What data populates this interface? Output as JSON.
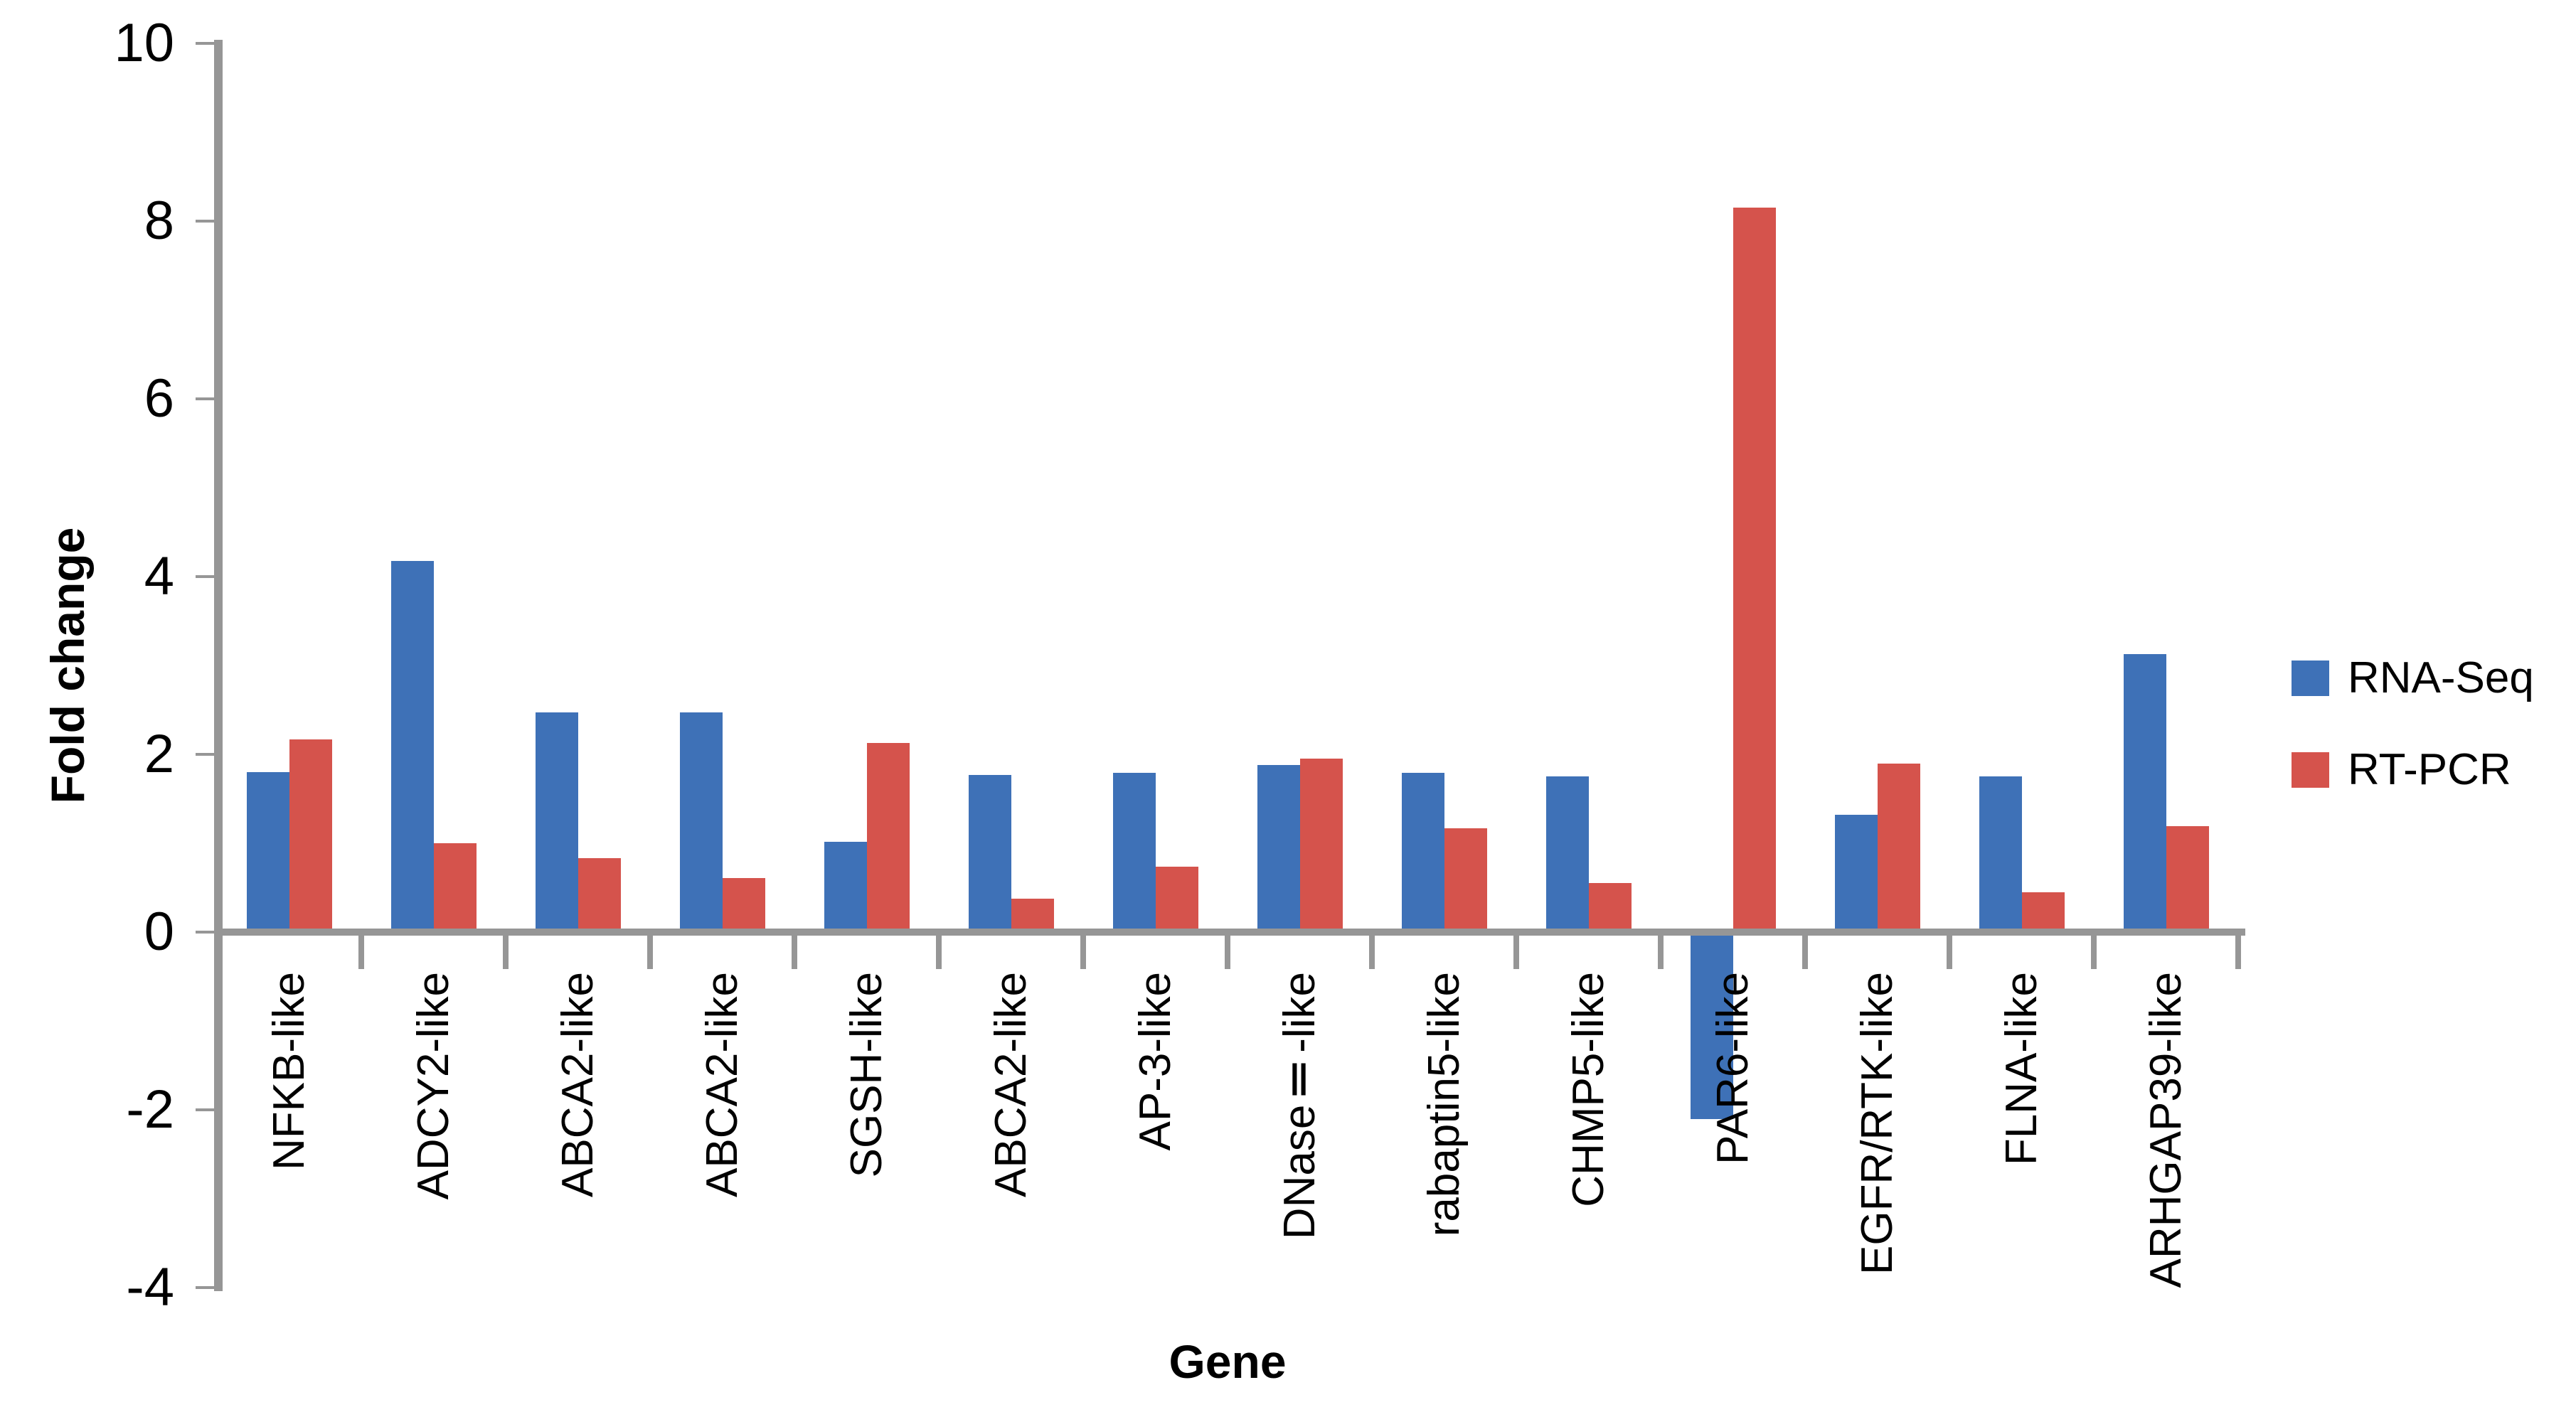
{
  "chart_data": {
    "type": "bar",
    "title": "",
    "xlabel": "Gene",
    "ylabel": "Fold change",
    "ylim": [
      -4,
      10
    ],
    "yticks": [
      10,
      8,
      6,
      4,
      2,
      0,
      -2,
      -4
    ],
    "grid": false,
    "legend_position": "right",
    "categories": [
      "NFKB-like",
      "ADCY2-like",
      "ABCA2-like",
      "ABCA2-like",
      "SGSH-like",
      "ABCA2-like",
      "AP-3-like",
      "DNaseⅡ-like",
      "rabaptin5-like",
      "CHMP5-like",
      "PAR6-like",
      "EGFR/RTK-like",
      "FLNA-like",
      "ARHGAP39-like"
    ],
    "series": [
      {
        "name": "RNA-Seq",
        "color": "#3E71B7",
        "values": [
          1.8,
          4.18,
          2.47,
          2.47,
          1.02,
          1.77,
          1.79,
          1.88,
          1.79,
          1.75,
          -2.1,
          1.32,
          1.75,
          3.13
        ]
      },
      {
        "name": "RT-PCR",
        "color": "#D5534C",
        "values": [
          2.17,
          1.0,
          0.83,
          0.61,
          2.13,
          0.38,
          0.74,
          1.95,
          1.17,
          0.55,
          8.15,
          1.9,
          0.45,
          1.19
        ]
      }
    ],
    "colors": {
      "axis": "#969696",
      "text": "#000000"
    }
  }
}
